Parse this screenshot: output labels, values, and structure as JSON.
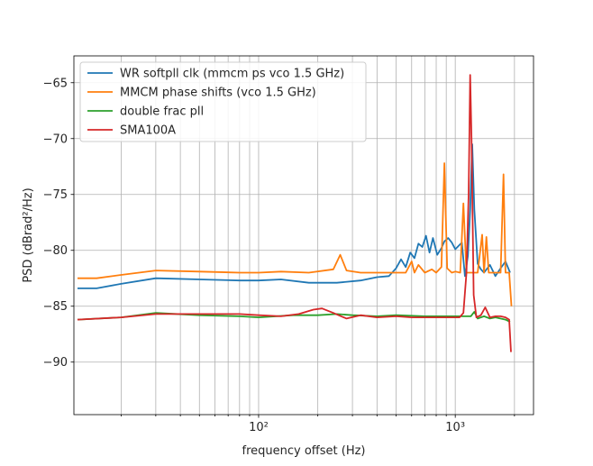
{
  "chart_data": {
    "type": "line",
    "xscale": "log",
    "xlim": [
      11.5,
      2500
    ],
    "ylim": [
      -94.7,
      -62.6
    ],
    "xlabel": "frequency offset (Hz)",
    "ylabel": "PSD (dBrad²/Hz)",
    "grid": true,
    "legend_position": "upper-left",
    "xticks": [
      {
        "value": 100,
        "label": "10²"
      },
      {
        "value": 1000,
        "label": "10³"
      }
    ],
    "yticks": [
      -90,
      -85,
      -80,
      -75,
      -70,
      -65
    ],
    "ytick_labels": [
      "−90",
      "−85",
      "−80",
      "−75",
      "−70",
      "−65"
    ],
    "series": [
      {
        "name": "WR softpll clk (mmcm ps vco 1.5 GHz)",
        "color": "#1f77b4",
        "points": [
          [
            12,
            -83.4
          ],
          [
            15,
            -83.4
          ],
          [
            20,
            -83.0
          ],
          [
            30,
            -82.5
          ],
          [
            50,
            -82.6
          ],
          [
            80,
            -82.7
          ],
          [
            100,
            -82.7
          ],
          [
            130,
            -82.6
          ],
          [
            180,
            -82.9
          ],
          [
            250,
            -82.9
          ],
          [
            330,
            -82.7
          ],
          [
            400,
            -82.4
          ],
          [
            460,
            -82.3
          ],
          [
            500,
            -81.6
          ],
          [
            530,
            -80.8
          ],
          [
            560,
            -81.5
          ],
          [
            590,
            -80.2
          ],
          [
            620,
            -80.7
          ],
          [
            650,
            -79.4
          ],
          [
            680,
            -79.7
          ],
          [
            710,
            -78.7
          ],
          [
            740,
            -80.2
          ],
          [
            770,
            -78.9
          ],
          [
            810,
            -80.4
          ],
          [
            850,
            -79.8
          ],
          [
            880,
            -79.2
          ],
          [
            920,
            -78.9
          ],
          [
            960,
            -79.3
          ],
          [
            1000,
            -79.9
          ],
          [
            1040,
            -79.6
          ],
          [
            1080,
            -79.3
          ],
          [
            1120,
            -82.3
          ],
          [
            1160,
            -80.5
          ],
          [
            1190,
            -76.4
          ],
          [
            1220,
            -70.5
          ],
          [
            1250,
            -76.3
          ],
          [
            1300,
            -81.2
          ],
          [
            1350,
            -81.7
          ],
          [
            1400,
            -82.0
          ],
          [
            1500,
            -81.3
          ],
          [
            1600,
            -82.3
          ],
          [
            1700,
            -81.6
          ],
          [
            1800,
            -81.0
          ],
          [
            1900,
            -82.0
          ]
        ]
      },
      {
        "name": "MMCM phase shifts (vco 1.5 GHz)",
        "color": "#ff7f0e",
        "points": [
          [
            12,
            -82.5
          ],
          [
            15,
            -82.5
          ],
          [
            20,
            -82.2
          ],
          [
            30,
            -81.8
          ],
          [
            50,
            -81.9
          ],
          [
            80,
            -82.0
          ],
          [
            100,
            -82.0
          ],
          [
            130,
            -81.9
          ],
          [
            180,
            -82.0
          ],
          [
            240,
            -81.7
          ],
          [
            260,
            -80.4
          ],
          [
            280,
            -81.8
          ],
          [
            330,
            -82.0
          ],
          [
            420,
            -82.0
          ],
          [
            500,
            -82.0
          ],
          [
            560,
            -82.0
          ],
          [
            600,
            -81.0
          ],
          [
            620,
            -82.0
          ],
          [
            650,
            -81.3
          ],
          [
            700,
            -82.0
          ],
          [
            760,
            -81.7
          ],
          [
            800,
            -82.0
          ],
          [
            850,
            -81.5
          ],
          [
            880,
            -72.2
          ],
          [
            910,
            -81.6
          ],
          [
            960,
            -82.0
          ],
          [
            1000,
            -81.9
          ],
          [
            1060,
            -82.0
          ],
          [
            1100,
            -75.8
          ],
          [
            1140,
            -82.0
          ],
          [
            1200,
            -82.0
          ],
          [
            1300,
            -82.0
          ],
          [
            1370,
            -78.6
          ],
          [
            1400,
            -82.0
          ],
          [
            1440,
            -78.8
          ],
          [
            1480,
            -82.0
          ],
          [
            1600,
            -82.0
          ],
          [
            1700,
            -82.0
          ],
          [
            1760,
            -73.2
          ],
          [
            1800,
            -82.0
          ],
          [
            1880,
            -82.0
          ],
          [
            1930,
            -85.0
          ]
        ]
      },
      {
        "name": "double frac pll",
        "color": "#2ca02c",
        "points": [
          [
            12,
            -86.2
          ],
          [
            20,
            -86.0
          ],
          [
            30,
            -85.6
          ],
          [
            50,
            -85.8
          ],
          [
            80,
            -85.9
          ],
          [
            100,
            -86.0
          ],
          [
            150,
            -85.8
          ],
          [
            200,
            -85.8
          ],
          [
            250,
            -85.7
          ],
          [
            300,
            -85.8
          ],
          [
            400,
            -85.9
          ],
          [
            500,
            -85.8
          ],
          [
            700,
            -85.9
          ],
          [
            900,
            -85.9
          ],
          [
            1100,
            -85.9
          ],
          [
            1200,
            -85.9
          ],
          [
            1250,
            -85.5
          ],
          [
            1300,
            -86.1
          ],
          [
            1400,
            -85.9
          ],
          [
            1500,
            -86.1
          ],
          [
            1600,
            -86.0
          ],
          [
            1800,
            -86.2
          ],
          [
            1900,
            -86.4
          ]
        ]
      },
      {
        "name": "SMA100A",
        "color": "#d62728",
        "points": [
          [
            12,
            -86.2
          ],
          [
            20,
            -86.0
          ],
          [
            30,
            -85.7
          ],
          [
            50,
            -85.7
          ],
          [
            80,
            -85.7
          ],
          [
            100,
            -85.8
          ],
          [
            130,
            -85.9
          ],
          [
            160,
            -85.7
          ],
          [
            190,
            -85.3
          ],
          [
            210,
            -85.2
          ],
          [
            240,
            -85.6
          ],
          [
            280,
            -86.1
          ],
          [
            330,
            -85.8
          ],
          [
            400,
            -86.0
          ],
          [
            500,
            -85.9
          ],
          [
            600,
            -86.0
          ],
          [
            800,
            -86.0
          ],
          [
            950,
            -86.0
          ],
          [
            1050,
            -86.0
          ],
          [
            1100,
            -85.6
          ],
          [
            1140,
            -82.0
          ],
          [
            1170,
            -75.0
          ],
          [
            1190,
            -64.3
          ],
          [
            1210,
            -70.0
          ],
          [
            1240,
            -84.0
          ],
          [
            1280,
            -86.0
          ],
          [
            1350,
            -85.8
          ],
          [
            1420,
            -85.1
          ],
          [
            1500,
            -86.0
          ],
          [
            1600,
            -85.9
          ],
          [
            1700,
            -85.9
          ],
          [
            1800,
            -86.0
          ],
          [
            1880,
            -86.2
          ],
          [
            1920,
            -89.1
          ]
        ]
      }
    ]
  }
}
